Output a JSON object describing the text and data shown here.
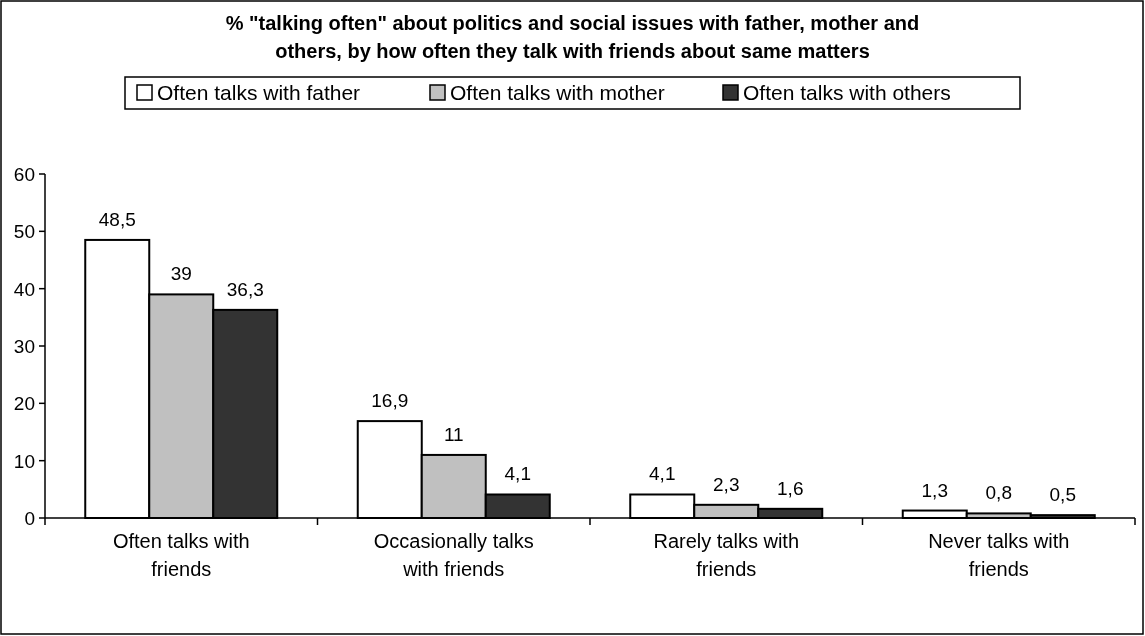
{
  "chart_data": {
    "type": "bar",
    "title": "% \"talking often\" about politics and social issues with father, mother and others, by how often they talk with friends about same matters",
    "categories": [
      "Often talks with friends",
      "Occasionally talks with friends",
      "Rarely talks with friends",
      "Never talks with friends"
    ],
    "series": [
      {
        "name": "Often talks with father",
        "color": "#ffffff",
        "values": [
          48.5,
          16.9,
          4.1,
          1.3
        ],
        "value_labels": [
          "48,5",
          "16,9",
          "4,1",
          "1,3"
        ]
      },
      {
        "name": "Often talks with mother",
        "color": "#c0c0c0",
        "values": [
          39,
          11,
          2.3,
          0.8
        ],
        "value_labels": [
          "39",
          "11",
          "2,3",
          "0,8"
        ]
      },
      {
        "name": "Often talks with others",
        "color": "#333333",
        "values": [
          36.3,
          4.1,
          1.6,
          0.5
        ],
        "value_labels": [
          "36,3",
          "4,1",
          "1,6",
          "0,5"
        ]
      }
    ],
    "ylim": [
      0,
      60
    ],
    "yticks": [
      0,
      10,
      20,
      30,
      40,
      50,
      60
    ],
    "legend": "top"
  }
}
